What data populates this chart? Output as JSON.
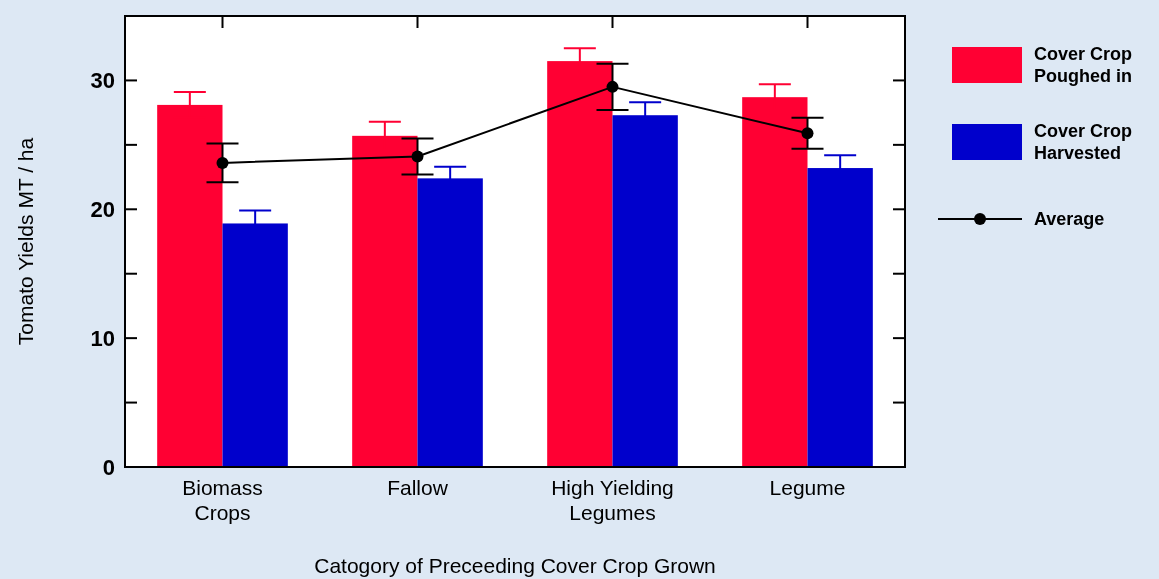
{
  "chart_data": {
    "type": "bar",
    "ylabel": "Tomato Yields MT / ha",
    "xlabel": "Catogory of Preceeding Cover Crop Grown",
    "categories": [
      "Biomass Crops",
      "Fallow",
      "High Yielding Legumes",
      "Legume"
    ],
    "series": [
      {
        "name": "Cover Crop Poughed in",
        "color": "#ff0033",
        "values": [
          28.1,
          25.7,
          31.5,
          28.7
        ],
        "errors": [
          1.0,
          1.1,
          1.0,
          1.0
        ]
      },
      {
        "name": "Cover Crop Harvested",
        "color": "#0000cc",
        "values": [
          18.9,
          22.4,
          27.3,
          23.2
        ],
        "errors": [
          1.0,
          0.9,
          1.0,
          1.0
        ]
      },
      {
        "name": "Average",
        "type": "line",
        "color": "#000000",
        "marker": "circle",
        "values": [
          23.6,
          24.1,
          29.5,
          25.9
        ],
        "errors": [
          1.5,
          1.4,
          1.8,
          1.2
        ]
      }
    ],
    "ylim": [
      0,
      35
    ],
    "yticks": [
      0,
      {
        "value": 5,
        "label": null
      },
      10,
      {
        "value": 15,
        "label": null
      },
      20,
      {
        "value": 25,
        "label": null
      },
      30
    ],
    "grid": false,
    "legend": "right"
  }
}
